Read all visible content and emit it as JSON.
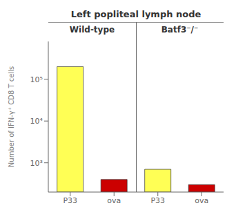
{
  "chart_data": {
    "type": "bar",
    "title": "Left popliteal lymph node",
    "group_labels": [
      "Wild-type",
      "Batf3⁻/⁻"
    ],
    "categories": [
      "P33",
      "ova",
      "P33",
      "ova"
    ],
    "values": [
      200000,
      400,
      700,
      300
    ],
    "colors": [
      "#FFFF55",
      "#CC0000",
      "#FFFF55",
      "#CC0000"
    ],
    "ylabel": "Number of IFN-γ⁺ CD8 T cells",
    "log": "y",
    "ylim": [
      200,
      800000
    ],
    "yticks": [
      {
        "value": 1000,
        "label": "10³"
      },
      {
        "value": 10000,
        "label": "10⁴"
      },
      {
        "value": 100000,
        "label": "10⁵"
      }
    ],
    "grid": false
  }
}
